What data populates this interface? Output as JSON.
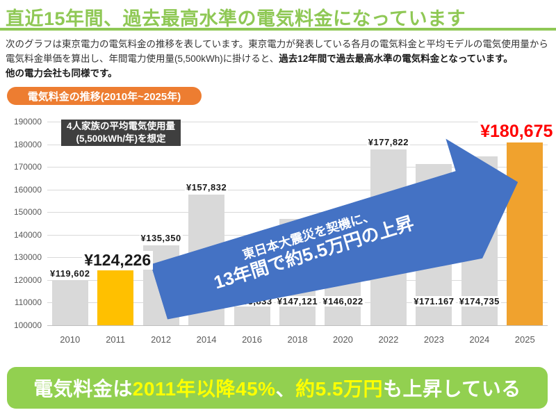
{
  "colors": {
    "accent_green": "#8FC855",
    "footer_green": "#92D050",
    "badge_orange": "#ED7D31",
    "arrow_blue": "#4472C4",
    "bar_gray": "#D9D9D9",
    "bar_gold": "#FFC000",
    "bar_orange": "#F0A22E",
    "highlight_red": "#FF0000",
    "highlight_yellow": "#FFFF00"
  },
  "header": {
    "title": "直近15年間、過去最高水準の電気料金になっています"
  },
  "intro": {
    "line1": "次のグラフは東京電力の電気料金の推移を表しています。東京電力が発表している各月の電気料金と平均モデルの電気使用量から",
    "line2_normal": "電気料金単価を算出し、年間電力使用量(5,500kWh)に掛けると、",
    "line2_bold": "過去12年間で過去最高水準の電気料金となっています。",
    "line3_bold": "他の電力会社も同様です。"
  },
  "chart_badge": {
    "label": "電気料金の推移(2010年~2025年)"
  },
  "annotation_box": {
    "line1": "4人家族の平均電気使用量",
    "line2": "(5,500kWh/年)を想定"
  },
  "arrow": {
    "line1": "東日本大震災を契機に、",
    "line2": "13年間で約5.5万円の上昇"
  },
  "chart_data": {
    "type": "bar",
    "title": "電気料金の推移(2010年~2025年)",
    "xlabel": "",
    "ylabel": "",
    "ylim": [
      100000,
      190000
    ],
    "ytick_step": 10000,
    "grid": true,
    "legend": "none",
    "categories": [
      "2010",
      "2011",
      "2012",
      "2014",
      "2016",
      "2018",
      "2020",
      "2022",
      "2023",
      "2024",
      "2025"
    ],
    "values": [
      119602,
      124226,
      135350,
      157832,
      133833,
      147121,
      146022,
      177822,
      171167,
      174735,
      180675
    ],
    "bars": [
      {
        "year": "2010",
        "value": 119602,
        "label": "¥119,602",
        "color": "#D9D9D9",
        "label_style": "small-above",
        "label_dx": 0
      },
      {
        "year": "2011",
        "value": 124226,
        "label": "¥124,226",
        "color": "#FFC000",
        "label_style": "big-above",
        "label_dx": 3
      },
      {
        "year": "2012",
        "value": 135350,
        "label": "¥135,350",
        "color": "#D9D9D9",
        "label_style": "small-above",
        "label_dx": 0
      },
      {
        "year": "2014",
        "value": 157832,
        "label": "¥157,832",
        "color": "#D9D9D9",
        "label_style": "small-above",
        "label_dx": 0
      },
      {
        "year": "2016",
        "value": 133833,
        "label": "¥133,833",
        "color": "#D9D9D9",
        "label_style": "bottom",
        "label_dx": 0
      },
      {
        "year": "2018",
        "value": 147121,
        "label": "¥147,121",
        "color": "#D9D9D9",
        "label_style": "bottom",
        "label_dx": 0
      },
      {
        "year": "2020",
        "value": 146022,
        "label": "¥146,022",
        "color": "#D9D9D9",
        "label_style": "bottom",
        "label_dx": 0
      },
      {
        "year": "2022",
        "value": 177822,
        "label": "¥177,822",
        "color": "#D9D9D9",
        "label_style": "small-above",
        "label_dx": 0
      },
      {
        "year": "2023",
        "value": 171167,
        "label": "¥171.167",
        "color": "#D9D9D9",
        "label_style": "bottom",
        "label_dx": 0
      },
      {
        "year": "2024",
        "value": 174735,
        "label": "¥174,735",
        "color": "#D9D9D9",
        "label_style": "bottom",
        "label_dx": 0
      },
      {
        "year": "2025",
        "value": 180675,
        "label": "¥180,675",
        "color": "#F0A22E",
        "label_style": "big-above-red",
        "label_dx": -12
      }
    ]
  },
  "footer": {
    "segments": [
      {
        "text": "電気料金は",
        "color": "white"
      },
      {
        "text": "2011年以降45%",
        "color": "yellow"
      },
      {
        "text": "、",
        "color": "white"
      },
      {
        "text": "約5.5万円",
        "color": "yellow"
      },
      {
        "text": "も上昇している",
        "color": "white"
      }
    ]
  }
}
